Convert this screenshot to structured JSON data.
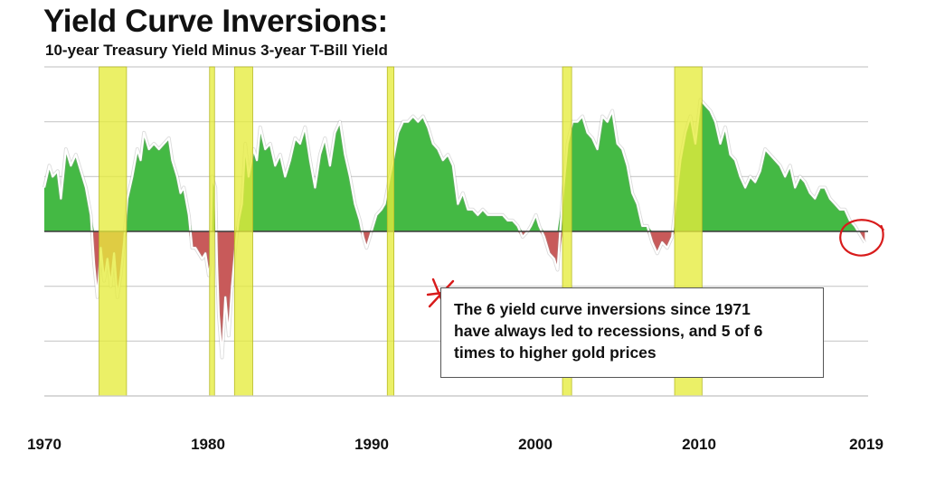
{
  "chart_data": {
    "type": "area",
    "title": "Yield Curve Inversions:",
    "subtitle": "10-year Treasury Yield Minus 3-year T-Bill Yield",
    "xlabel": "",
    "ylabel": "",
    "xlim": [
      1970,
      2019.6
    ],
    "ylim": [
      -3.0,
      3.0
    ],
    "y_tick_labels": [],
    "x_tick_labels": [
      "1970",
      "1980",
      "1990",
      "2000",
      "2010",
      "2019"
    ],
    "grid": true,
    "legend": "none",
    "colors": {
      "positive": "#44b944",
      "negative": "#c85a5a",
      "recession": "#e5ec3c",
      "spread_line": "#ffffff",
      "zero_line": "#3a3a3a",
      "grid": "#c9c9c9",
      "marker": "#d81b1b"
    },
    "recession_bands": [
      {
        "start": 1973.3,
        "end": 1974.95
      },
      {
        "start": 1979.95,
        "end": 1980.25
      },
      {
        "start": 1981.45,
        "end": 1982.55
      },
      {
        "start": 1990.65,
        "end": 1991.05
      },
      {
        "start": 2001.2,
        "end": 2001.75
      },
      {
        "start": 2007.95,
        "end": 2009.6
      }
    ],
    "series": [
      {
        "points": [
          [
            1970.0,
            0.8
          ],
          [
            1970.3,
            1.2
          ],
          [
            1970.5,
            1.0
          ],
          [
            1970.8,
            1.1
          ],
          [
            1971.0,
            0.6
          ],
          [
            1971.3,
            1.5
          ],
          [
            1971.6,
            1.2
          ],
          [
            1971.9,
            1.4
          ],
          [
            1972.2,
            1.1
          ],
          [
            1972.5,
            0.8
          ],
          [
            1972.8,
            0.3
          ],
          [
            1973.0,
            -0.6
          ],
          [
            1973.2,
            -1.2
          ],
          [
            1973.4,
            -0.3
          ],
          [
            1973.6,
            -0.9
          ],
          [
            1973.8,
            -0.5
          ],
          [
            1974.0,
            -1.0
          ],
          [
            1974.2,
            -0.4
          ],
          [
            1974.4,
            -1.2
          ],
          [
            1974.6,
            -0.8
          ],
          [
            1974.8,
            -0.2
          ],
          [
            1975.0,
            0.6
          ],
          [
            1975.3,
            1.0
          ],
          [
            1975.6,
            1.5
          ],
          [
            1975.8,
            1.3
          ],
          [
            1976.0,
            1.8
          ],
          [
            1976.3,
            1.5
          ],
          [
            1976.6,
            1.6
          ],
          [
            1976.9,
            1.5
          ],
          [
            1977.2,
            1.6
          ],
          [
            1977.5,
            1.7
          ],
          [
            1977.7,
            1.3
          ],
          [
            1978.0,
            1.0
          ],
          [
            1978.2,
            0.7
          ],
          [
            1978.4,
            0.8
          ],
          [
            1978.7,
            0.3
          ],
          [
            1978.9,
            -0.3
          ],
          [
            1979.1,
            -0.3
          ],
          [
            1979.3,
            -0.4
          ],
          [
            1979.5,
            -0.5
          ],
          [
            1979.7,
            -0.4
          ],
          [
            1979.9,
            -0.8
          ],
          [
            1980.0,
            -0.6
          ],
          [
            1980.1,
            1.0
          ],
          [
            1980.3,
            0.8
          ],
          [
            1980.4,
            -0.6
          ],
          [
            1980.5,
            -1.5
          ],
          [
            1980.7,
            -2.3
          ],
          [
            1980.9,
            -1.2
          ],
          [
            1981.1,
            -1.9
          ],
          [
            1981.3,
            -1.0
          ],
          [
            1981.5,
            -0.3
          ],
          [
            1981.7,
            0.2
          ],
          [
            1981.9,
            0.5
          ],
          [
            1982.1,
            1.6
          ],
          [
            1982.3,
            1.0
          ],
          [
            1982.6,
            1.5
          ],
          [
            1982.8,
            1.3
          ],
          [
            1983.0,
            1.9
          ],
          [
            1983.3,
            1.5
          ],
          [
            1983.6,
            1.6
          ],
          [
            1983.9,
            1.2
          ],
          [
            1984.2,
            1.4
          ],
          [
            1984.5,
            1.0
          ],
          [
            1984.8,
            1.3
          ],
          [
            1985.1,
            1.7
          ],
          [
            1985.4,
            1.6
          ],
          [
            1985.7,
            1.9
          ],
          [
            1986.0,
            1.3
          ],
          [
            1986.3,
            0.8
          ],
          [
            1986.6,
            1.4
          ],
          [
            1986.9,
            1.7
          ],
          [
            1987.2,
            1.2
          ],
          [
            1987.5,
            1.8
          ],
          [
            1987.8,
            2.0
          ],
          [
            1988.1,
            1.4
          ],
          [
            1988.4,
            1.0
          ],
          [
            1988.7,
            0.5
          ],
          [
            1989.0,
            0.2
          ],
          [
            1989.2,
            -0.1
          ],
          [
            1989.4,
            -0.3
          ],
          [
            1989.6,
            -0.1
          ],
          [
            1989.8,
            0.1
          ],
          [
            1990.0,
            0.3
          ],
          [
            1990.3,
            0.4
          ],
          [
            1990.5,
            0.5
          ],
          [
            1990.8,
            1.0
          ],
          [
            1991.0,
            1.3
          ],
          [
            1991.3,
            1.8
          ],
          [
            1991.6,
            2.0
          ],
          [
            1991.9,
            2.0
          ],
          [
            1992.2,
            2.1
          ],
          [
            1992.5,
            2.0
          ],
          [
            1992.8,
            2.1
          ],
          [
            1993.1,
            1.9
          ],
          [
            1993.4,
            1.6
          ],
          [
            1993.7,
            1.5
          ],
          [
            1994.0,
            1.3
          ],
          [
            1994.3,
            1.4
          ],
          [
            1994.6,
            1.2
          ],
          [
            1994.9,
            0.5
          ],
          [
            1995.2,
            0.7
          ],
          [
            1995.5,
            0.4
          ],
          [
            1995.8,
            0.4
          ],
          [
            1996.1,
            0.3
          ],
          [
            1996.4,
            0.4
          ],
          [
            1996.7,
            0.3
          ],
          [
            1997.0,
            0.3
          ],
          [
            1997.3,
            0.3
          ],
          [
            1997.6,
            0.3
          ],
          [
            1997.9,
            0.2
          ],
          [
            1998.2,
            0.2
          ],
          [
            1998.5,
            0.1
          ],
          [
            1998.8,
            -0.1
          ],
          [
            1999.1,
            0.0
          ],
          [
            1999.3,
            0.1
          ],
          [
            1999.6,
            0.3
          ],
          [
            1999.8,
            0.1
          ],
          [
            2000.1,
            -0.1
          ],
          [
            2000.4,
            -0.4
          ],
          [
            2000.7,
            -0.5
          ],
          [
            2000.9,
            -0.7
          ],
          [
            2001.2,
            0.6
          ],
          [
            2001.5,
            1.6
          ],
          [
            2001.8,
            2.0
          ],
          [
            2002.1,
            2.0
          ],
          [
            2002.4,
            2.1
          ],
          [
            2002.7,
            1.8
          ],
          [
            2003.0,
            1.7
          ],
          [
            2003.3,
            1.5
          ],
          [
            2003.6,
            2.1
          ],
          [
            2003.9,
            2.0
          ],
          [
            2004.2,
            2.2
          ],
          [
            2004.5,
            1.6
          ],
          [
            2004.8,
            1.5
          ],
          [
            2005.1,
            1.2
          ],
          [
            2005.4,
            0.7
          ],
          [
            2005.7,
            0.5
          ],
          [
            2006.0,
            0.1
          ],
          [
            2006.3,
            0.1
          ],
          [
            2006.6,
            -0.2
          ],
          [
            2006.9,
            -0.4
          ],
          [
            2007.2,
            -0.2
          ],
          [
            2007.5,
            -0.3
          ],
          [
            2007.8,
            -0.1
          ],
          [
            2008.0,
            0.5
          ],
          [
            2008.3,
            1.3
          ],
          [
            2008.6,
            1.8
          ],
          [
            2008.9,
            2.1
          ],
          [
            2009.2,
            1.6
          ],
          [
            2009.5,
            2.4
          ],
          [
            2009.8,
            2.3
          ],
          [
            2010.1,
            2.2
          ],
          [
            2010.4,
            2.0
          ],
          [
            2010.7,
            1.6
          ],
          [
            2011.0,
            1.9
          ],
          [
            2011.3,
            1.4
          ],
          [
            2011.6,
            1.3
          ],
          [
            2011.9,
            1.0
          ],
          [
            2012.2,
            0.8
          ],
          [
            2012.5,
            1.0
          ],
          [
            2012.8,
            0.9
          ],
          [
            2013.1,
            1.1
          ],
          [
            2013.4,
            1.5
          ],
          [
            2013.7,
            1.4
          ],
          [
            2014.0,
            1.3
          ],
          [
            2014.3,
            1.2
          ],
          [
            2014.6,
            1.0
          ],
          [
            2014.9,
            1.2
          ],
          [
            2015.2,
            0.8
          ],
          [
            2015.5,
            1.0
          ],
          [
            2015.8,
            0.9
          ],
          [
            2016.1,
            0.7
          ],
          [
            2016.4,
            0.6
          ],
          [
            2016.7,
            0.8
          ],
          [
            2017.0,
            0.8
          ],
          [
            2017.3,
            0.6
          ],
          [
            2017.6,
            0.5
          ],
          [
            2017.9,
            0.4
          ],
          [
            2018.2,
            0.4
          ],
          [
            2018.5,
            0.2
          ],
          [
            2018.8,
            0.1
          ],
          [
            2019.0,
            0.0
          ],
          [
            2019.2,
            -0.1
          ],
          [
            2019.4,
            -0.2
          ]
        ]
      }
    ],
    "annotations": [
      {
        "text": "The 6 yield curve inversions since 1971 have always led to recessions, and 5 of 6 times to higher gold prices"
      }
    ]
  },
  "note": {
    "line1": "The 6 yield curve inversions since 1971",
    "line2": "have always led to recessions, and 5 of 6",
    "line3": "times to higher gold prices"
  },
  "icons": [
    "asterisk-marker-icon",
    "circle-marker-icon"
  ]
}
